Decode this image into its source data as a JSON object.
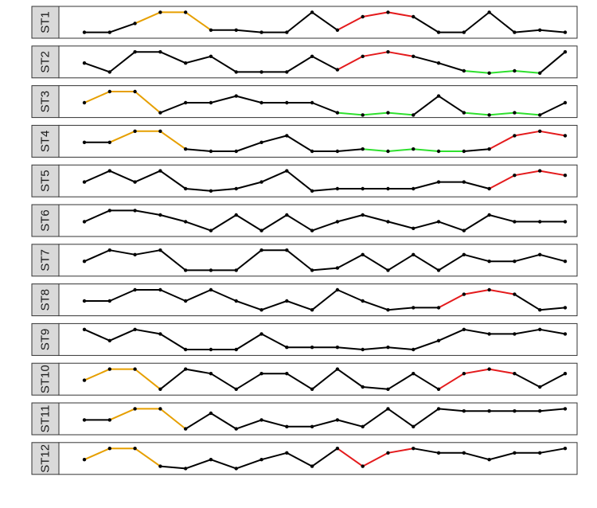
{
  "chart_data": {
    "type": "line",
    "colors": {
      "default": "#000000",
      "orange": "#E69F00",
      "red": "#E41A1C",
      "green": "#2EE02E",
      "strip": "#D9D9D9",
      "frame": "#333333"
    },
    "x": [
      1,
      2,
      3,
      4,
      5,
      6,
      7,
      8,
      9,
      10,
      11,
      12,
      13,
      14,
      15,
      16,
      17,
      18,
      19,
      20
    ],
    "ylim": [
      0,
      1
    ],
    "panels": [
      {
        "label": "ST1",
        "values": [
          0.05,
          0.05,
          0.45,
          0.95,
          0.95,
          0.15,
          0.15,
          0.05,
          0.05,
          0.95,
          0.15,
          0.75,
          0.95,
          0.75,
          0.05,
          0.05,
          0.95,
          0.05,
          0.15,
          0.05
        ],
        "highlights": [
          {
            "color": "orange",
            "from": 3,
            "to": 6
          },
          {
            "color": "red",
            "from": 11,
            "to": 14
          }
        ]
      },
      {
        "label": "ST2",
        "values": [
          0.45,
          0.05,
          0.95,
          0.95,
          0.45,
          0.75,
          0.05,
          0.05,
          0.05,
          0.75,
          0.15,
          0.75,
          0.95,
          0.75,
          0.45,
          0.1,
          0.0,
          0.1,
          0.0,
          0.95
        ],
        "highlights": [
          {
            "color": "red",
            "from": 11,
            "to": 14
          },
          {
            "color": "green",
            "from": 16,
            "to": 19
          }
        ]
      },
      {
        "label": "ST3",
        "values": [
          0.45,
          0.95,
          0.95,
          0.0,
          0.45,
          0.45,
          0.75,
          0.45,
          0.45,
          0.45,
          0.0,
          -0.1,
          0.0,
          -0.1,
          0.75,
          0.0,
          -0.1,
          0.0,
          -0.1,
          0.45
        ],
        "highlights": [
          {
            "color": "orange",
            "from": 1,
            "to": 4
          },
          {
            "color": "green",
            "from": 11,
            "to": 14
          },
          {
            "color": "green",
            "from": 16,
            "to": 19
          }
        ]
      },
      {
        "label": "ST4",
        "values": [
          0.45,
          0.45,
          0.95,
          0.95,
          0.15,
          0.05,
          0.05,
          0.45,
          0.75,
          0.05,
          0.05,
          0.15,
          0.05,
          0.15,
          0.05,
          0.05,
          0.15,
          0.75,
          0.95,
          0.75
        ],
        "highlights": [
          {
            "color": "orange",
            "from": 2,
            "to": 5
          },
          {
            "color": "green",
            "from": 12,
            "to": 16
          },
          {
            "color": "red",
            "from": 17,
            "to": 20
          }
        ]
      },
      {
        "label": "ST5",
        "values": [
          0.45,
          0.95,
          0.45,
          0.95,
          0.15,
          0.05,
          0.15,
          0.45,
          0.95,
          0.05,
          0.15,
          0.15,
          0.15,
          0.15,
          0.45,
          0.45,
          0.15,
          0.75,
          0.95,
          0.75
        ],
        "highlights": [
          {
            "color": "red",
            "from": 17,
            "to": 20
          }
        ]
      },
      {
        "label": "ST6",
        "values": [
          0.45,
          0.95,
          0.95,
          0.75,
          0.45,
          0.05,
          0.75,
          0.05,
          0.75,
          0.05,
          0.45,
          0.75,
          0.45,
          0.15,
          0.45,
          0.05,
          0.75,
          0.45,
          0.45,
          0.45
        ],
        "highlights": []
      },
      {
        "label": "ST7",
        "values": [
          0.45,
          0.95,
          0.75,
          0.95,
          0.05,
          0.05,
          0.05,
          0.95,
          0.95,
          0.05,
          0.15,
          0.75,
          0.05,
          0.75,
          0.05,
          0.75,
          0.45,
          0.45,
          0.75,
          0.45
        ],
        "highlights": []
      },
      {
        "label": "ST8",
        "values": [
          0.45,
          0.45,
          0.95,
          0.95,
          0.45,
          0.95,
          0.45,
          0.05,
          0.45,
          0.05,
          0.95,
          0.45,
          0.05,
          0.15,
          0.15,
          0.75,
          0.95,
          0.75,
          0.05,
          0.15
        ],
        "highlights": [
          {
            "color": "red",
            "from": 15,
            "to": 18
          }
        ]
      },
      {
        "label": "ST9",
        "values": [
          0.95,
          0.45,
          0.95,
          0.75,
          0.05,
          0.05,
          0.05,
          0.75,
          0.15,
          0.15,
          0.15,
          0.05,
          0.15,
          0.05,
          0.45,
          0.95,
          0.75,
          0.75,
          0.95,
          0.75
        ],
        "highlights": []
      },
      {
        "label": "ST10",
        "values": [
          0.45,
          0.95,
          0.95,
          0.05,
          0.95,
          0.75,
          0.05,
          0.75,
          0.75,
          0.05,
          0.95,
          0.15,
          0.05,
          0.75,
          0.05,
          0.75,
          0.95,
          0.75,
          0.15,
          0.75
        ],
        "highlights": [
          {
            "color": "orange",
            "from": 1,
            "to": 4
          },
          {
            "color": "red",
            "from": 15,
            "to": 18
          }
        ]
      },
      {
        "label": "ST11",
        "values": [
          0.45,
          0.45,
          0.95,
          0.95,
          0.05,
          0.75,
          0.05,
          0.45,
          0.15,
          0.15,
          0.45,
          0.15,
          0.95,
          0.15,
          0.95,
          0.85,
          0.85,
          0.85,
          0.85,
          0.95
        ],
        "highlights": [
          {
            "color": "orange",
            "from": 2,
            "to": 5
          }
        ]
      },
      {
        "label": "ST12",
        "values": [
          0.45,
          0.95,
          0.95,
          0.15,
          0.05,
          0.45,
          0.05,
          0.45,
          0.75,
          0.15,
          0.95,
          0.15,
          0.75,
          0.95,
          0.75,
          0.75,
          0.45,
          0.75,
          0.75,
          0.95
        ],
        "highlights": [
          {
            "color": "orange",
            "from": 1,
            "to": 4
          },
          {
            "color": "red",
            "from": 11,
            "to": 14
          }
        ]
      }
    ]
  }
}
